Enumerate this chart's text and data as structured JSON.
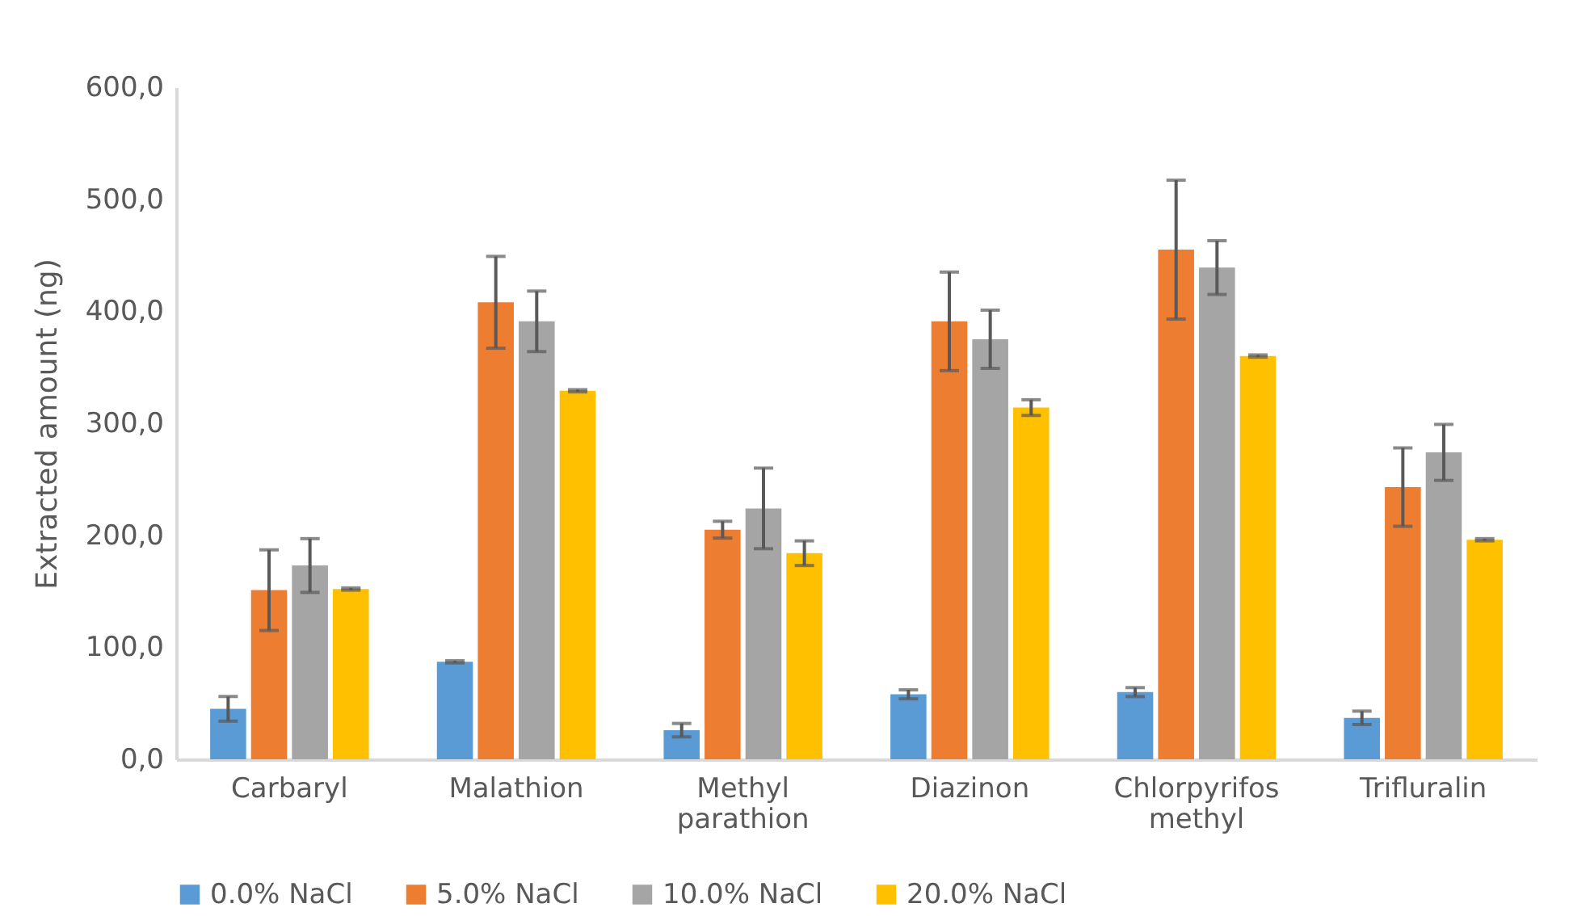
{
  "chart_data": {
    "type": "bar",
    "ylabel": "Extracted amount (ng)",
    "categories": [
      "Carbaryl",
      "Malathion",
      "Methyl parathion",
      "Diazinon",
      "Chlorpyrifos methyl",
      "Trifluralin"
    ],
    "series": [
      {
        "name": "0.0% NaCl",
        "color": "#5b9bd5",
        "values": [
          45,
          87,
          26,
          58,
          60,
          37
        ],
        "errors": [
          11,
          1,
          6,
          4,
          4,
          6
        ]
      },
      {
        "name": "5.0% NaCl",
        "color": "#ed7d31",
        "values": [
          151,
          408,
          205,
          391,
          455,
          243
        ],
        "errors": [
          36,
          41,
          7.5,
          44,
          62,
          35
        ]
      },
      {
        "name": "10.0% NaCl",
        "color": "#a5a5a5",
        "values": [
          173,
          391,
          224,
          375,
          439,
          274
        ],
        "errors": [
          24,
          27,
          36,
          26,
          24,
          25
        ]
      },
      {
        "name": "20.0% NaCl",
        "color": "#ffc000",
        "values": [
          152,
          329,
          184,
          314,
          360,
          196
        ],
        "errors": [
          1,
          1,
          11,
          7,
          1,
          1
        ]
      }
    ],
    "ylim": [
      0,
      600
    ],
    "yticks": [
      {
        "value": 0,
        "label": "0,0"
      },
      {
        "value": 100,
        "label": "100,0"
      },
      {
        "value": 200,
        "label": "200,0"
      },
      {
        "value": 300,
        "label": "300,0"
      },
      {
        "value": 400,
        "label": "400,0"
      },
      {
        "value": 500,
        "label": "500,0"
      },
      {
        "value": 600,
        "label": "600,0"
      }
    ],
    "grid": false,
    "legend": "bottom"
  }
}
